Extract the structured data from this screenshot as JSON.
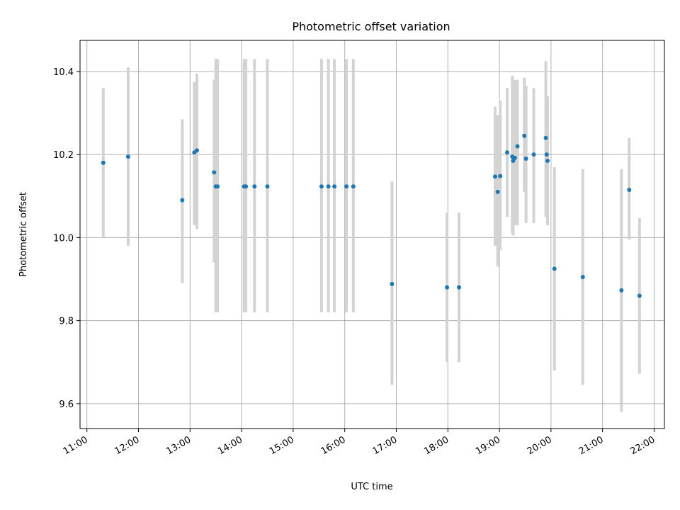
{
  "chart_data": {
    "type": "scatter",
    "title": "Photometric offset variation",
    "xlabel": "UTC time",
    "ylabel": "Photometric offset",
    "x_unit": "hours",
    "xlim": [
      "10:52",
      "22:12"
    ],
    "ylim": [
      9.54,
      10.475
    ],
    "x_ticks": [
      "11:00",
      "12:00",
      "13:00",
      "14:00",
      "15:00",
      "16:00",
      "17:00",
      "18:00",
      "19:00",
      "20:00",
      "21:00",
      "22:00"
    ],
    "y_ticks": [
      9.6,
      9.8,
      10.0,
      10.2,
      10.4
    ],
    "y_tick_labels": [
      "9.6",
      "9.8",
      "10.0",
      "10.2",
      "10.4"
    ],
    "grid": true,
    "point_color": "#1f77b4",
    "errorbar_color": "#d3d3d3",
    "series": [
      {
        "points": [
          {
            "x": "11:19",
            "y": 10.18,
            "lo": 10.0,
            "hi": 10.36
          },
          {
            "x": "11:48",
            "y": 10.195,
            "lo": 9.98,
            "hi": 10.41
          },
          {
            "x": "12:51",
            "y": 10.09,
            "lo": 9.89,
            "hi": 10.285
          },
          {
            "x": "13:05",
            "y": 10.205,
            "lo": 10.03,
            "hi": 10.375
          },
          {
            "x": "13:08",
            "y": 10.21,
            "lo": 10.02,
            "hi": 10.395
          },
          {
            "x": "13:28",
            "y": 10.157,
            "lo": 9.94,
            "hi": 10.38
          },
          {
            "x": "13:30",
            "y": 10.123,
            "lo": 9.82,
            "hi": 10.43
          },
          {
            "x": "13:32",
            "y": 10.123,
            "lo": 9.82,
            "hi": 10.43
          },
          {
            "x": "14:03",
            "y": 10.123,
            "lo": 9.82,
            "hi": 10.43
          },
          {
            "x": "14:05",
            "y": 10.123,
            "lo": 9.82,
            "hi": 10.43
          },
          {
            "x": "14:15",
            "y": 10.123,
            "lo": 9.82,
            "hi": 10.43
          },
          {
            "x": "14:30",
            "y": 10.123,
            "lo": 9.82,
            "hi": 10.43
          },
          {
            "x": "15:33",
            "y": 10.123,
            "lo": 9.82,
            "hi": 10.43
          },
          {
            "x": "15:41",
            "y": 10.123,
            "lo": 9.82,
            "hi": 10.43
          },
          {
            "x": "15:48",
            "y": 10.123,
            "lo": 9.82,
            "hi": 10.43
          },
          {
            "x": "16:02",
            "y": 10.123,
            "lo": 9.82,
            "hi": 10.43
          },
          {
            "x": "16:10",
            "y": 10.123,
            "lo": 9.82,
            "hi": 10.43
          },
          {
            "x": "16:55",
            "y": 9.888,
            "lo": 9.645,
            "hi": 10.135
          },
          {
            "x": "17:59",
            "y": 9.88,
            "lo": 9.7,
            "hi": 10.06
          },
          {
            "x": "18:13",
            "y": 9.88,
            "lo": 9.7,
            "hi": 10.06
          },
          {
            "x": "18:55",
            "y": 10.147,
            "lo": 9.98,
            "hi": 10.315
          },
          {
            "x": "18:58",
            "y": 10.11,
            "lo": 9.93,
            "hi": 10.295
          },
          {
            "x": "19:01",
            "y": 10.148,
            "lo": 9.97,
            "hi": 10.33
          },
          {
            "x": "19:09",
            "y": 10.205,
            "lo": 10.05,
            "hi": 10.36
          },
          {
            "x": "19:15",
            "y": 10.195,
            "lo": 10.01,
            "hi": 10.39
          },
          {
            "x": "19:16",
            "y": 10.185,
            "lo": 10.005,
            "hi": 10.375
          },
          {
            "x": "19:18",
            "y": 10.192,
            "lo": 10.03,
            "hi": 10.38
          },
          {
            "x": "19:21",
            "y": 10.22,
            "lo": 10.03,
            "hi": 10.38
          },
          {
            "x": "19:29",
            "y": 10.245,
            "lo": 10.11,
            "hi": 10.385
          },
          {
            "x": "19:31",
            "y": 10.19,
            "lo": 10.035,
            "hi": 10.365
          },
          {
            "x": "19:40",
            "y": 10.2,
            "lo": 10.035,
            "hi": 10.36
          },
          {
            "x": "19:54",
            "y": 10.24,
            "lo": 10.05,
            "hi": 10.425
          },
          {
            "x": "19:55",
            "y": 10.2,
            "lo": 10.06,
            "hi": 10.34
          },
          {
            "x": "19:56",
            "y": 10.185,
            "lo": 10.03,
            "hi": 10.34
          },
          {
            "x": "20:04",
            "y": 9.925,
            "lo": 9.68,
            "hi": 10.17
          },
          {
            "x": "20:37",
            "y": 9.905,
            "lo": 9.645,
            "hi": 10.165
          },
          {
            "x": "21:22",
            "y": 9.873,
            "lo": 9.58,
            "hi": 10.165
          },
          {
            "x": "21:31",
            "y": 10.115,
            "lo": 9.995,
            "hi": 10.24
          },
          {
            "x": "21:43",
            "y": 9.86,
            "lo": 9.672,
            "hi": 10.047
          }
        ]
      }
    ]
  }
}
